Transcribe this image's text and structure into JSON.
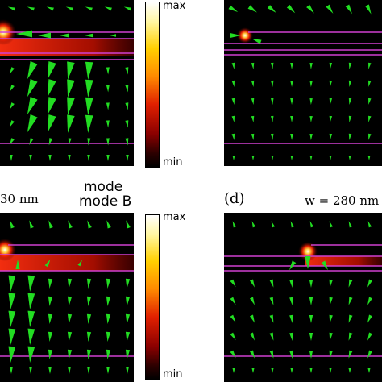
{
  "colorbar_top": {
    "max_label": "max",
    "min_label": "min"
  },
  "colorbar_bottom": {
    "max_label": "max",
    "min_label": "min"
  },
  "panel_c": {
    "width_label": "30 nm"
  },
  "panel_d": {
    "letter": "(d)",
    "width_label": "w = 280 nm"
  },
  "mode_labels": {
    "line1": "mode",
    "line2": "mode B"
  },
  "colors": {
    "arrow": "#22dd22",
    "waveguide_line": "#d040d0",
    "field_hot": "#ff2000"
  }
}
